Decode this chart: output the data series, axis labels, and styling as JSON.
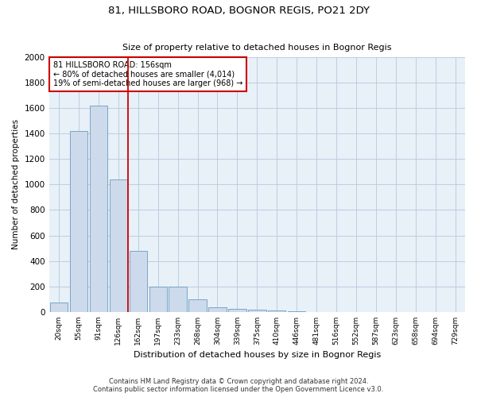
{
  "title": "81, HILLSBORO ROAD, BOGNOR REGIS, PO21 2DY",
  "subtitle": "Size of property relative to detached houses in Bognor Regis",
  "xlabel": "Distribution of detached houses by size in Bognor Regis",
  "ylabel": "Number of detached properties",
  "categories": [
    "20sqm",
    "55sqm",
    "91sqm",
    "126sqm",
    "162sqm",
    "197sqm",
    "233sqm",
    "268sqm",
    "304sqm",
    "339sqm",
    "375sqm",
    "410sqm",
    "446sqm",
    "481sqm",
    "516sqm",
    "552sqm",
    "587sqm",
    "623sqm",
    "658sqm",
    "694sqm",
    "729sqm"
  ],
  "values": [
    75,
    1420,
    1620,
    1040,
    480,
    200,
    200,
    100,
    35,
    25,
    20,
    10,
    5,
    2,
    1,
    1,
    0,
    0,
    0,
    0,
    0
  ],
  "bar_color": "#ccdaeb",
  "bar_edge_color": "#6b9dc2",
  "vline_x_index": 3.5,
  "vline_color": "#cc0000",
  "annotation_text": "81 HILLSBORO ROAD: 156sqm\n← 80% of detached houses are smaller (4,014)\n19% of semi-detached houses are larger (968) →",
  "annotation_box_color": "#cc0000",
  "ylim": [
    0,
    2000
  ],
  "yticks": [
    0,
    200,
    400,
    600,
    800,
    1000,
    1200,
    1400,
    1600,
    1800,
    2000
  ],
  "footer_line1": "Contains HM Land Registry data © Crown copyright and database right 2024.",
  "footer_line2": "Contains public sector information licensed under the Open Government Licence v3.0.",
  "bg_color": "#ffffff",
  "plot_bg_color": "#e8f0f8",
  "grid_color": "#b8c8dc"
}
